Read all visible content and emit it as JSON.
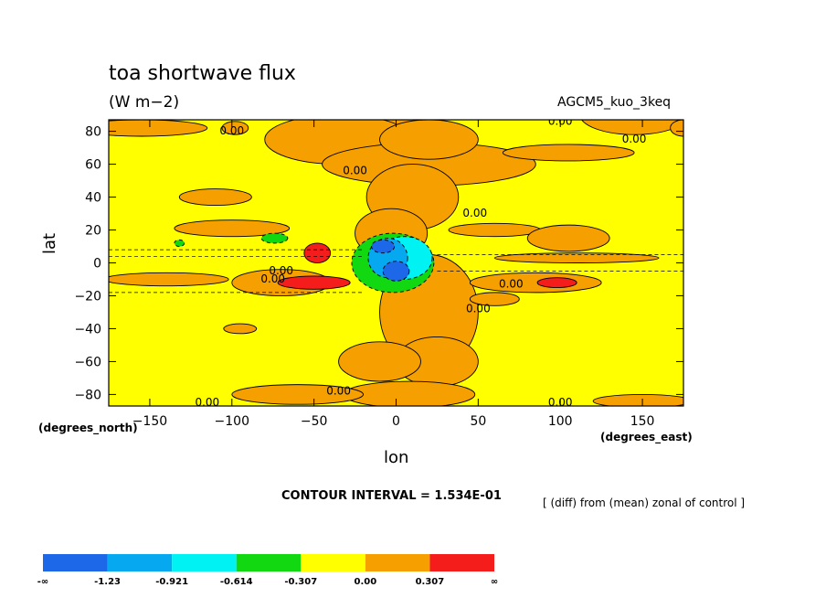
{
  "header": {
    "title": "toa shortwave flux",
    "units": "(W m−2)",
    "run_name": "AGCM5_kuo_3keq"
  },
  "footer": {
    "contour_interval": "CONTOUR INTERVAL = 1.534E-01",
    "diff_note": "[ (diff) from (mean) zonal of control ]"
  },
  "chart_data": {
    "type": "heatmap",
    "title": "toa shortwave flux",
    "subtitle": "(W m−2)",
    "xlabel": "lon",
    "ylabel": "lat",
    "x_unit_label": "(degrees_east)",
    "y_unit_label": "(degrees_north)",
    "xlim": [
      -175,
      175
    ],
    "ylim": [
      -87,
      87
    ],
    "x_ticks": [
      -150,
      -100,
      -50,
      0,
      50,
      100,
      150
    ],
    "x_tick_labels": [
      "−150",
      "−100",
      "−50",
      "0",
      "50",
      "100",
      "150"
    ],
    "y_ticks": [
      80,
      60,
      40,
      20,
      0,
      -20,
      -40,
      -60,
      -80
    ],
    "y_tick_labels": [
      "80",
      "60",
      "40",
      "20",
      "0",
      "−20",
      "−40",
      "−60",
      "−80"
    ],
    "contour_label": "0.00",
    "contour_label_positions": [
      [
        -100,
        80
      ],
      [
        -25,
        56
      ],
      [
        48,
        30
      ],
      [
        145,
        75
      ],
      [
        -70,
        -5
      ],
      [
        -75,
        -10
      ],
      [
        70,
        -13
      ],
      [
        50,
        -28
      ],
      [
        -35,
        -78
      ],
      [
        100,
        86
      ],
      [
        100,
        -85
      ],
      [
        -115,
        -85
      ]
    ],
    "levels": [
      "-∞",
      "-1.23",
      "-0.921",
      "-0.614",
      "-0.307",
      "0.00",
      "0.307",
      "∞"
    ],
    "colorbar_colors": [
      "#1c68e8",
      "#06a8f0",
      "#00f2f2",
      "#12d812",
      "#ffff00",
      "#f5a000",
      "#f51c1c"
    ],
    "regions": [
      {
        "lon": 0,
        "lat": 90,
        "rlon": 15,
        "rlat": 12,
        "v": 0.1
      },
      {
        "lon": 145,
        "lat": 90,
        "rlon": 33,
        "rlat": 12,
        "v": 0.1
      },
      {
        "lon": 175,
        "lat": 82,
        "rlon": 8,
        "rlat": 5,
        "v": 0.1
      },
      {
        "lon": -155,
        "lat": 82,
        "rlon": 40,
        "rlat": 5,
        "v": 0.1
      },
      {
        "lon": -98,
        "lat": 82,
        "rlon": 8,
        "rlat": 4,
        "v": 0.1
      },
      {
        "lon": -35,
        "lat": 75,
        "rlon": 45,
        "rlat": 15,
        "v": 0.1
      },
      {
        "lon": 20,
        "lat": 60,
        "rlon": 65,
        "rlat": 13,
        "v": 0.1
      },
      {
        "lon": 20,
        "lat": 75,
        "rlon": 30,
        "rlat": 12,
        "v": 0.1
      },
      {
        "lon": 105,
        "lat": 67,
        "rlon": 40,
        "rlat": 5,
        "v": 0.1
      },
      {
        "lon": 10,
        "lat": 40,
        "rlon": 28,
        "rlat": 20,
        "v": 0.1
      },
      {
        "lon": -3,
        "lat": 18,
        "rlon": 22,
        "rlat": 15,
        "v": 0.1
      },
      {
        "lon": 20,
        "lat": -30,
        "rlon": 30,
        "rlat": 35,
        "v": 0.1
      },
      {
        "lon": 25,
        "lat": -60,
        "rlon": 25,
        "rlat": 15,
        "v": 0.1
      },
      {
        "lon": -10,
        "lat": -60,
        "rlon": 25,
        "rlat": 12,
        "v": 0.1
      },
      {
        "lon": 8,
        "lat": -80,
        "rlon": 40,
        "rlat": 8,
        "v": 0.1
      },
      {
        "lon": -60,
        "lat": -80,
        "rlon": 40,
        "rlat": 6,
        "v": 0.1
      },
      {
        "lon": 150,
        "lat": -84,
        "rlon": 30,
        "rlat": 4,
        "v": 0.1
      },
      {
        "lon": -110,
        "lat": 40,
        "rlon": 22,
        "rlat": 5,
        "v": 0.1
      },
      {
        "lon": -100,
        "lat": 21,
        "rlon": 35,
        "rlat": 5,
        "v": 0.1
      },
      {
        "lon": 60,
        "lat": 20,
        "rlon": 28,
        "rlat": 4,
        "v": 0.1
      },
      {
        "lon": 105,
        "lat": 15,
        "rlon": 25,
        "rlat": 8,
        "v": 0.1
      },
      {
        "lon": 110,
        "lat": 3,
        "rlon": 50,
        "rlat": 3,
        "v": 0.1
      },
      {
        "lon": -140,
        "lat": -10,
        "rlon": 38,
        "rlat": 4,
        "v": 0.1
      },
      {
        "lon": 85,
        "lat": -12,
        "rlon": 40,
        "rlat": 6,
        "v": 0.1
      },
      {
        "lon": 60,
        "lat": -22,
        "rlon": 15,
        "rlat": 4,
        "v": 0.1
      },
      {
        "lon": -95,
        "lat": -40,
        "rlon": 10,
        "rlat": 3,
        "v": 0.1
      },
      {
        "lon": -70,
        "lat": -12,
        "rlon": 30,
        "rlat": 8,
        "v": 0.1
      },
      {
        "lon": -48,
        "lat": 6,
        "rlon": 8,
        "rlat": 6,
        "v": 0.5
      },
      {
        "lon": -50,
        "lat": -12,
        "rlon": 22,
        "rlat": 4,
        "v": 0.5
      },
      {
        "lon": 98,
        "lat": -12,
        "rlon": 12,
        "rlat": 3,
        "v": 0.5
      },
      {
        "lon": -2,
        "lat": 0,
        "rlon": 25,
        "rlat": 18,
        "v": -0.4
      },
      {
        "lon": 5,
        "lat": 3,
        "rlon": 17,
        "rlat": 13,
        "v": -0.7
      },
      {
        "lon": -5,
        "lat": 3,
        "rlon": 12,
        "rlat": 12,
        "v": -1.0
      },
      {
        "lon": 0,
        "lat": -5,
        "rlon": 8,
        "rlat": 6,
        "v": -1.3
      },
      {
        "lon": -8,
        "lat": 10,
        "rlon": 7,
        "rlat": 4,
        "v": -1.3
      },
      {
        "lon": -74,
        "lat": 15,
        "rlon": 8,
        "rlat": 3,
        "v": -0.4
      },
      {
        "lon": -132,
        "lat": 12,
        "rlon": 3,
        "rlat": 2,
        "v": -0.4
      }
    ]
  }
}
